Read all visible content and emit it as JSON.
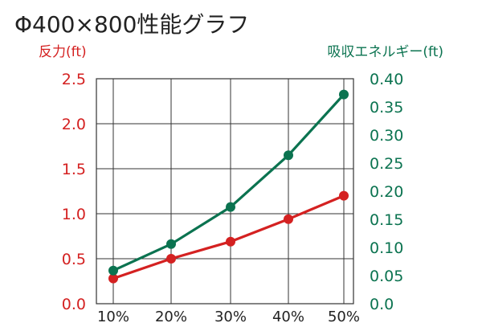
{
  "chart_data": {
    "type": "line",
    "title": "Φ400×800性能グラフ",
    "categories": [
      "10%",
      "20%",
      "30%",
      "40%",
      "50%"
    ],
    "y_left": {
      "label": "反力(ft)",
      "min": 0.0,
      "max": 2.5,
      "ticks": [
        "0.0",
        "0.5",
        "1.0",
        "1.5",
        "2.0",
        "2.5"
      ],
      "color": "#d42121"
    },
    "y_right": {
      "label": "吸収エネルギー(ft)",
      "min": 0.0,
      "max": 0.4,
      "ticks": [
        "0.0",
        "0.05",
        "0.10",
        "0.15",
        "0.20",
        "0.25",
        "0.30",
        "0.35",
        "0.40"
      ],
      "color": "#0b7350"
    },
    "grid": true,
    "series": [
      {
        "axis": "left",
        "color": "#d42121",
        "values": [
          0.28,
          0.5,
          0.69,
          0.94,
          1.2
        ]
      },
      {
        "axis": "right",
        "color": "#0b7350",
        "values": [
          0.059,
          0.106,
          0.172,
          0.264,
          0.372
        ]
      }
    ]
  }
}
